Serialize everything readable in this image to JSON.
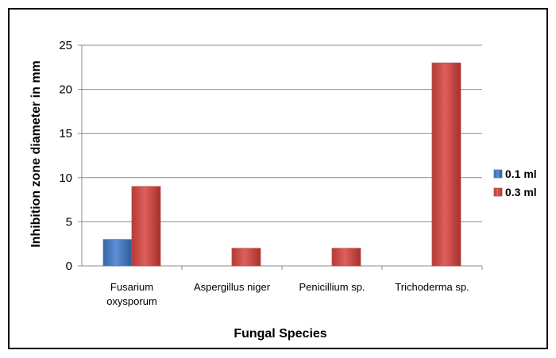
{
  "chart_data": {
    "type": "bar",
    "xlabel": "Fungal Species",
    "ylabel": "Inhibition zone diameter in mm",
    "categories": [
      [
        "Fusarium",
        "oxysporum"
      ],
      [
        "Aspergillus niger"
      ],
      [
        "Penicillium sp."
      ],
      [
        "Trichoderma sp."
      ]
    ],
    "series": [
      {
        "name": "0.1 ml",
        "color": "#4f81bd",
        "values": [
          3,
          0,
          0,
          0
        ]
      },
      {
        "name": "0.3 ml",
        "color": "#c0504d",
        "values": [
          9,
          2,
          2,
          23
        ]
      }
    ],
    "ylim": [
      0,
      25
    ],
    "yticks": [
      0,
      5,
      10,
      15,
      20,
      25
    ],
    "grid": true,
    "legend_position": "right"
  }
}
